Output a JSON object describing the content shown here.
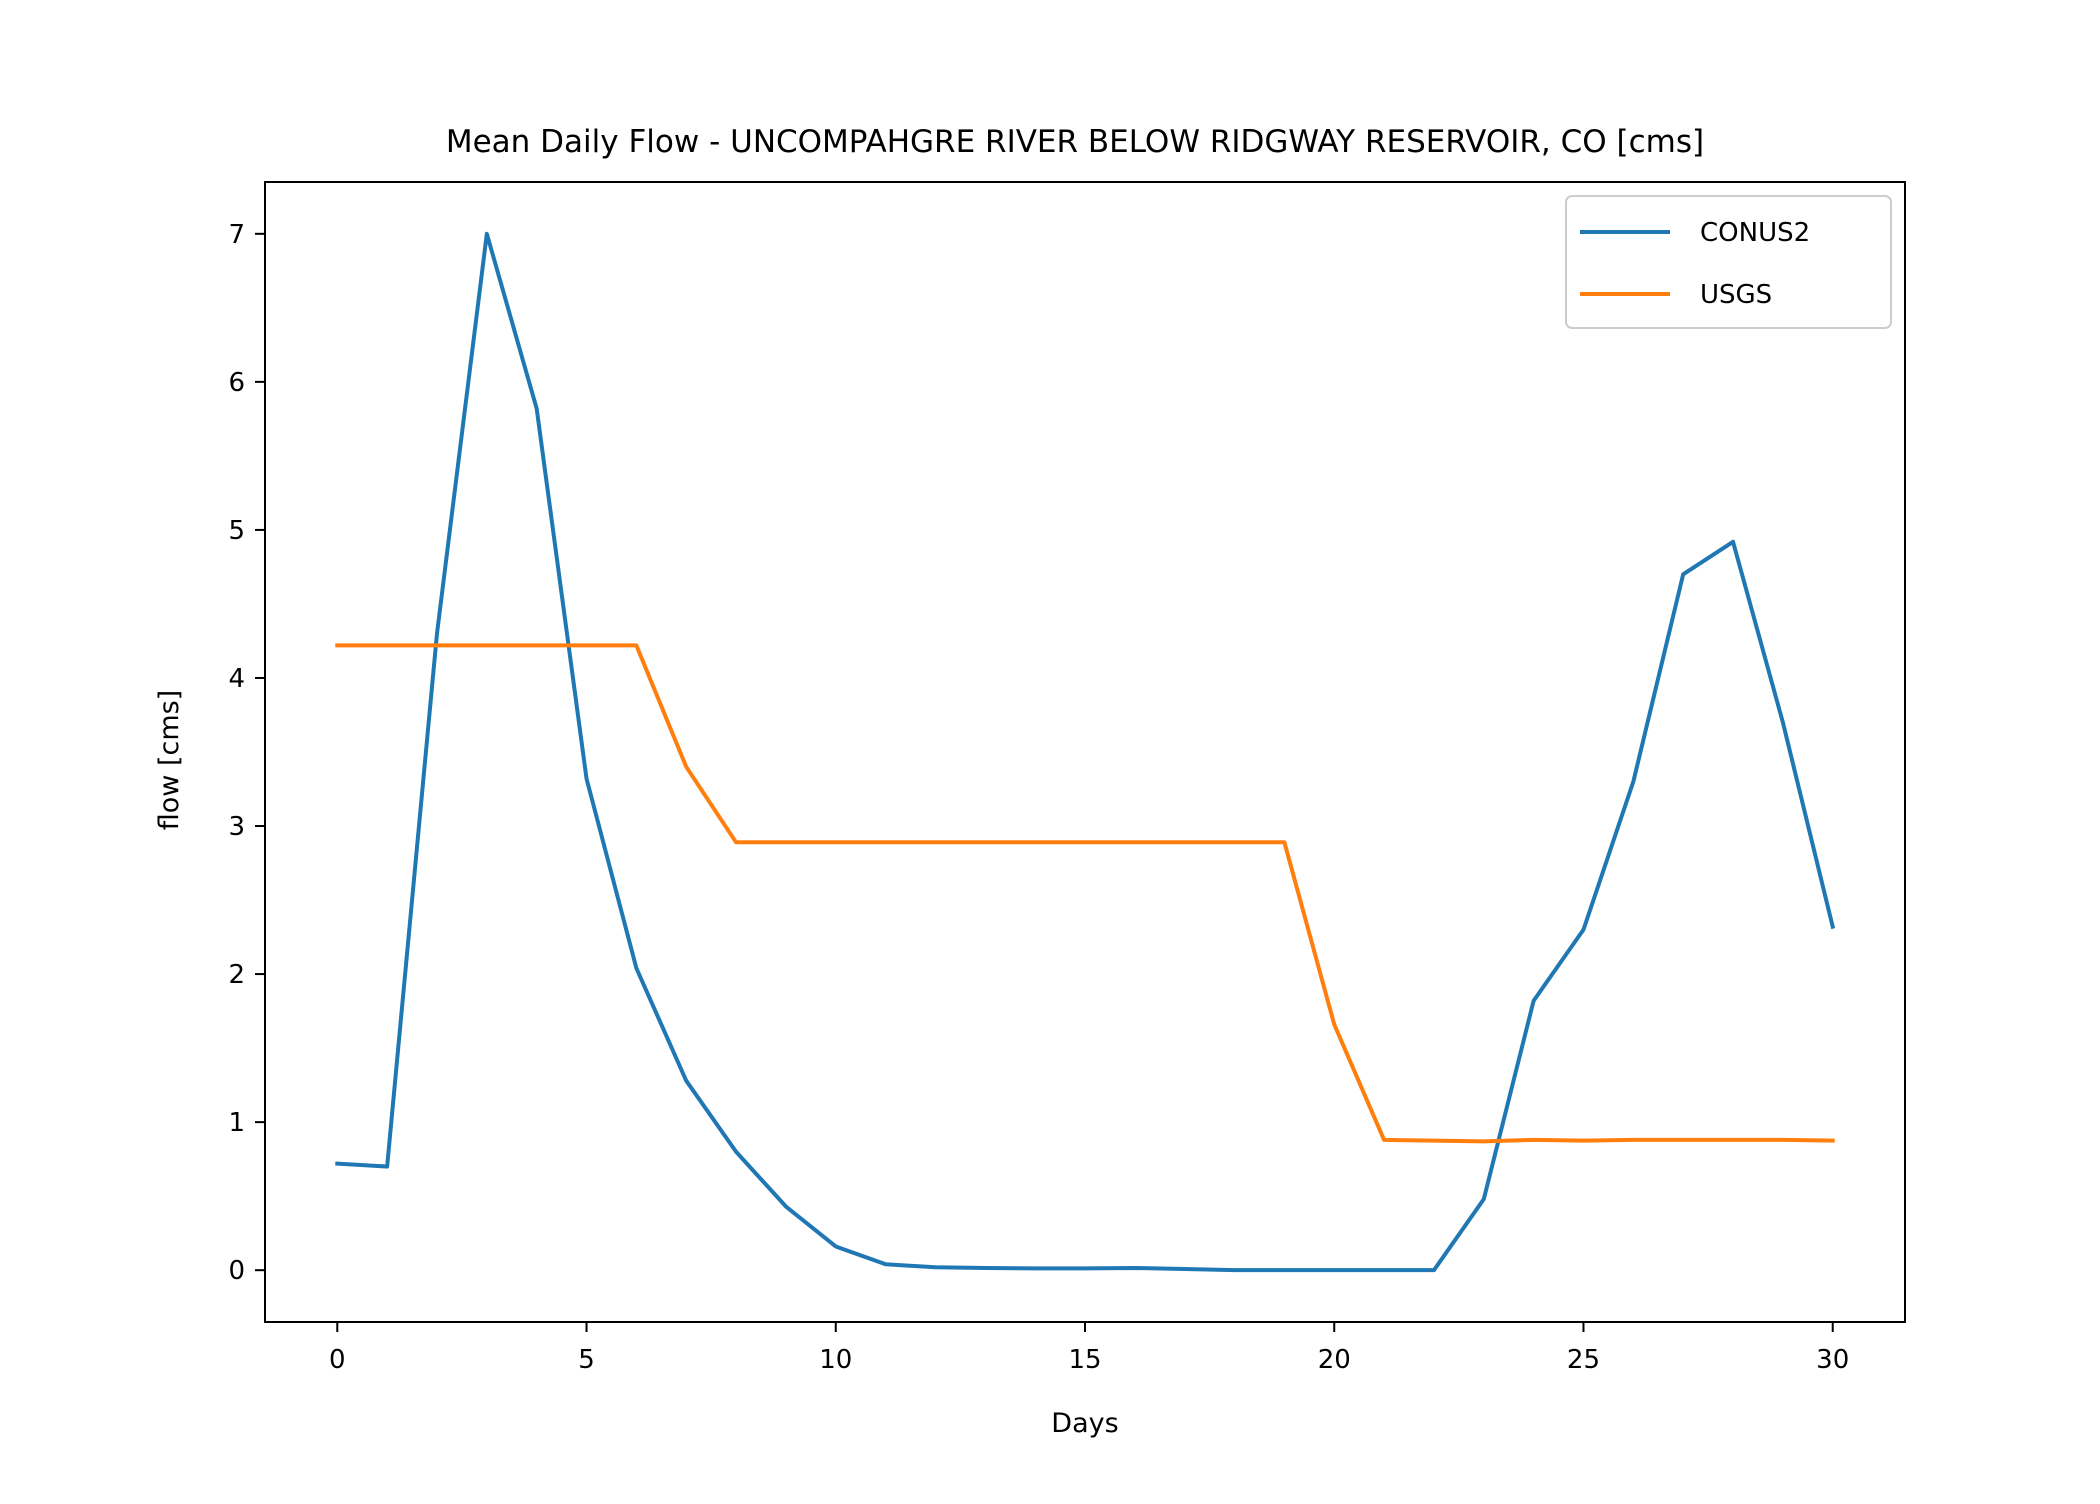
{
  "chart_data": {
    "type": "line",
    "title": "Mean Daily Flow - UNCOMPAHGRE RIVER BELOW RIDGWAY RESERVOIR, CO [cms]",
    "xlabel": "Days",
    "ylabel": "flow [cms]",
    "xlim": [
      -1.45,
      31.45
    ],
    "ylim": [
      -0.35,
      7.35
    ],
    "xticks": [
      0,
      5,
      10,
      15,
      20,
      25,
      30
    ],
    "yticks": [
      0,
      1,
      2,
      3,
      4,
      5,
      6,
      7
    ],
    "grid": false,
    "legend_position": "top-right",
    "x": [
      0,
      1,
      2,
      3,
      4,
      5,
      6,
      7,
      8,
      9,
      10,
      11,
      12,
      13,
      14,
      15,
      16,
      17,
      18,
      19,
      20,
      21,
      22,
      23,
      24,
      25,
      26,
      27,
      28,
      29,
      30
    ],
    "series": [
      {
        "name": "CONUS2",
        "color": "#1f77b4",
        "values": [
          0.72,
          0.7,
          4.3,
          7.0,
          5.82,
          3.32,
          2.04,
          1.28,
          0.8,
          0.43,
          0.16,
          0.04,
          0.02,
          0.015,
          0.012,
          0.012,
          0.015,
          0.008,
          0.0,
          0.0,
          0.0,
          0.0,
          0.0,
          0.48,
          1.82,
          2.3,
          3.3,
          4.7,
          4.92,
          3.7,
          2.32
        ]
      },
      {
        "name": "USGS",
        "color": "#ff7f0e",
        "values": [
          4.22,
          4.22,
          4.22,
          4.22,
          4.22,
          4.22,
          4.22,
          3.4,
          2.89,
          2.89,
          2.89,
          2.89,
          2.89,
          2.89,
          2.89,
          2.89,
          2.89,
          2.89,
          2.89,
          2.89,
          1.66,
          0.88,
          0.875,
          0.87,
          0.88,
          0.875,
          0.88,
          0.88,
          0.88,
          0.88,
          0.875
        ]
      }
    ]
  }
}
